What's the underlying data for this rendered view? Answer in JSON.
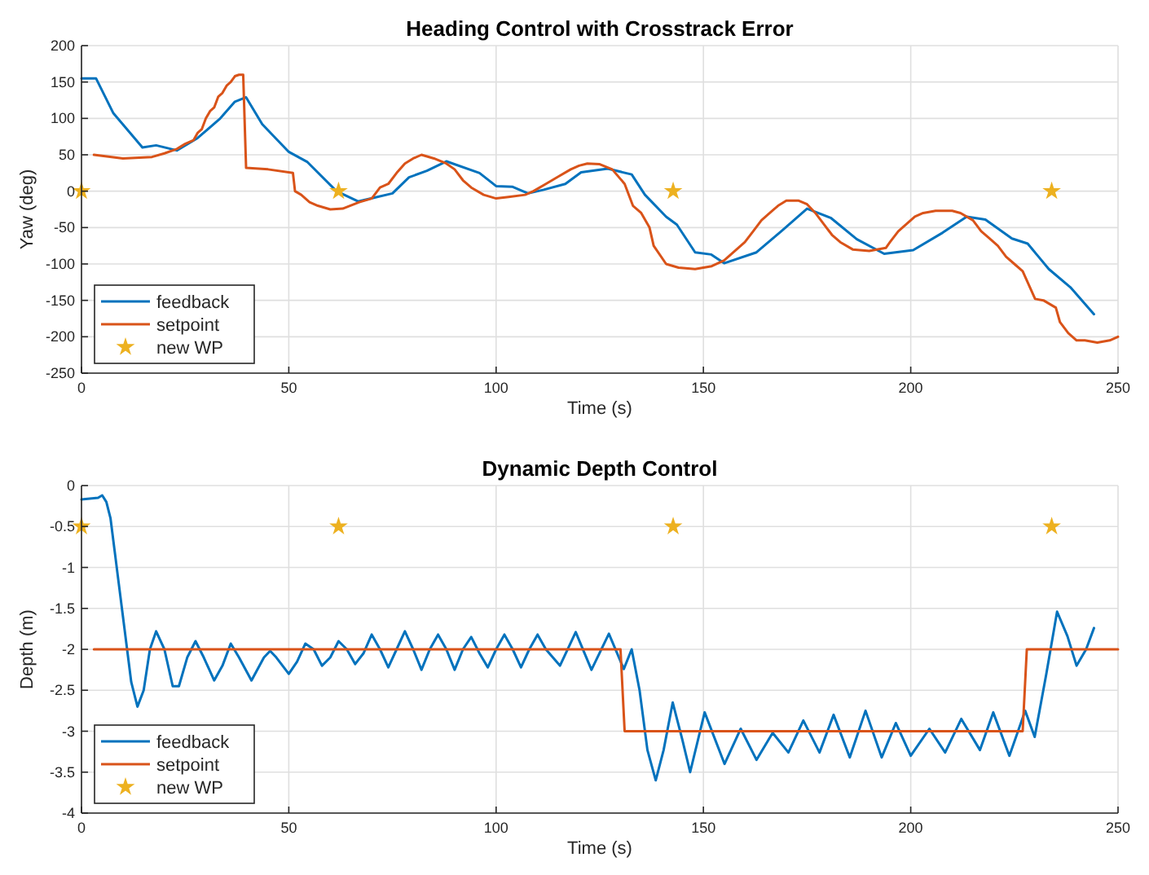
{
  "chart_data": [
    {
      "type": "line",
      "title": "Heading Control with Crosstrack Error",
      "xlabel": "Time (s)",
      "ylabel": "Yaw (deg)",
      "xlim": [
        0,
        250
      ],
      "xticks": [
        0,
        50,
        100,
        150,
        200,
        250
      ],
      "ylim": [
        -250,
        200
      ],
      "yticks": [
        -250,
        -200,
        -150,
        -100,
        -50,
        0,
        50,
        100,
        150,
        200
      ],
      "grid": true,
      "legend": "bottom left",
      "series": [
        {
          "name": "feedback",
          "color": "#0072bd",
          "type": "line",
          "marker": "none",
          "x": [
            0,
            3.5,
            7.7,
            14.7,
            18,
            23,
            28,
            33.3,
            37,
            39.7,
            43.6,
            50,
            54.5,
            61.5,
            66.7,
            70.5,
            75,
            79,
            83.3,
            88,
            96,
            100,
            104,
            107.7,
            111.5,
            116.7,
            120.5,
            126.9,
            132.7,
            135.9,
            141,
            143.6,
            148,
            151.9,
            155,
            162.8,
            169,
            175,
            180.8,
            187,
            193.6,
            200.6,
            207.7,
            213.5,
            218,
            224.4,
            228.2,
            233.3,
            238.5,
            244.2
          ],
          "values": [
            155,
            155,
            107,
            60,
            63,
            56,
            73,
            99,
            123,
            129,
            92,
            54,
            40,
            0,
            -14,
            -9,
            -3,
            19,
            28,
            41,
            25,
            7,
            6,
            -3,
            2,
            10,
            26,
            31,
            23,
            -5,
            -35,
            -46,
            -84,
            -87,
            -99,
            -84,
            -54,
            -24,
            -37,
            -66,
            -86,
            -81,
            -57,
            -35,
            -39,
            -65,
            -72,
            -107,
            -132,
            -169
          ]
        },
        {
          "name": "setpoint",
          "color": "#d95319",
          "type": "line",
          "marker": "none",
          "x": [
            3,
            10,
            17,
            20,
            23,
            25,
            27,
            28,
            29,
            30,
            31,
            32,
            33,
            34,
            35,
            36,
            37,
            38,
            39,
            39.7,
            45,
            51,
            51.5,
            53,
            55,
            57,
            60,
            63,
            67,
            70,
            72,
            74,
            76,
            78,
            80,
            82,
            85,
            88,
            90,
            92,
            94,
            97,
            100,
            103,
            107,
            109,
            112,
            115,
            118,
            120,
            122,
            125,
            128,
            131,
            133,
            135,
            137,
            138,
            141,
            144,
            148,
            152,
            155,
            157,
            160,
            162,
            164,
            166,
            168,
            170,
            173,
            175,
            177,
            179,
            181,
            183,
            186,
            190,
            194,
            195,
            197,
            199,
            201,
            203,
            206,
            210,
            212,
            215,
            217,
            219,
            221,
            223,
            225,
            227,
            230,
            232,
            235,
            236,
            238,
            240,
            242,
            245,
            248,
            250
          ],
          "values": [
            50,
            45,
            47,
            52,
            58,
            65,
            70,
            80,
            85,
            100,
            110,
            115,
            130,
            135,
            145,
            150,
            158,
            160,
            160,
            32,
            30,
            25,
            0,
            -5,
            -15,
            -20,
            -25,
            -24,
            -15,
            -10,
            5,
            10,
            25,
            38,
            45,
            50,
            45,
            38,
            30,
            15,
            5,
            -5,
            -10,
            -8,
            -5,
            0,
            10,
            20,
            30,
            35,
            38,
            37,
            30,
            10,
            -20,
            -30,
            -50,
            -75,
            -100,
            -105,
            -107,
            -103,
            -95,
            -85,
            -70,
            -55,
            -40,
            -30,
            -20,
            -13,
            -13,
            -18,
            -30,
            -45,
            -60,
            -70,
            -80,
            -82,
            -78,
            -70,
            -55,
            -45,
            -35,
            -30,
            -27,
            -27,
            -30,
            -40,
            -55,
            -65,
            -75,
            -90,
            -100,
            -110,
            -148,
            -150,
            -160,
            -180,
            -195,
            -205,
            -205,
            -208,
            -205,
            -200
          ]
        },
        {
          "name": "new WP",
          "color": "#edb120",
          "type": "scatter",
          "marker": "star",
          "x": [
            0,
            62,
            142.7,
            234
          ],
          "values": [
            0,
            0,
            0,
            0
          ]
        }
      ]
    },
    {
      "type": "line",
      "title": "Dynamic Depth Control",
      "xlabel": "Time (s)",
      "ylabel": "Depth (m)",
      "xlim": [
        0,
        250
      ],
      "xticks": [
        0,
        50,
        100,
        150,
        200,
        250
      ],
      "ylim": [
        -4,
        0
      ],
      "yticks": [
        -4,
        -3.5,
        -3,
        -2.5,
        -2,
        -1.5,
        -1,
        -0.5,
        0
      ],
      "grid": true,
      "legend": "bottom left",
      "series": [
        {
          "name": "feedback",
          "color": "#0072bd",
          "type": "line",
          "marker": "none",
          "x": [
            0,
            4,
            5,
            6,
            7,
            8,
            9,
            10,
            11,
            12,
            13.5,
            15,
            16.5,
            18,
            20,
            22,
            23.5,
            25.5,
            27.5,
            29.5,
            32,
            34,
            36,
            38,
            41,
            44,
            45.5,
            47,
            50,
            52,
            54,
            56,
            58,
            60,
            62,
            64,
            66,
            68,
            70,
            72,
            74,
            76,
            78,
            80,
            82,
            84,
            86,
            88,
            90,
            92,
            94,
            96,
            98,
            100,
            102,
            104,
            106,
            108,
            110,
            112,
            115.4,
            119.2,
            123,
            127.2,
            130.8,
            132.7,
            134.6,
            136.5,
            138.5,
            140.4,
            142.6,
            144.9,
            146.8,
            150.3,
            155.1,
            159,
            162.8,
            166.7,
            170.5,
            174.1,
            178,
            181.4,
            185.3,
            189.1,
            193,
            196.4,
            200,
            204.5,
            208.3,
            212.2,
            216.7,
            219.9,
            223.8,
            227.6,
            229.9,
            232.7,
            235.3,
            237.8,
            240,
            242.3,
            244.2
          ],
          "values": [
            -0.17,
            -0.15,
            -0.12,
            -0.2,
            -0.4,
            -0.8,
            -1.2,
            -1.6,
            -2,
            -2.4,
            -2.7,
            -2.5,
            -2,
            -1.78,
            -2,
            -2.45,
            -2.45,
            -2.1,
            -1.9,
            -2.1,
            -2.38,
            -2.2,
            -1.93,
            -2.1,
            -2.38,
            -2.1,
            -2.02,
            -2.1,
            -2.3,
            -2.15,
            -1.93,
            -2,
            -2.2,
            -2.1,
            -1.9,
            -2,
            -2.18,
            -2.05,
            -1.82,
            -2,
            -2.22,
            -2,
            -1.78,
            -2,
            -2.25,
            -2,
            -1.82,
            -2,
            -2.25,
            -2,
            -1.85,
            -2.05,
            -2.22,
            -2,
            -1.82,
            -2,
            -2.22,
            -2,
            -1.82,
            -2,
            -2.2,
            -1.79,
            -2.25,
            -1.81,
            -2.24,
            -2,
            -2.5,
            -3.23,
            -3.6,
            -3.23,
            -2.65,
            -3.1,
            -3.5,
            -2.77,
            -3.4,
            -2.97,
            -3.35,
            -3.02,
            -3.26,
            -2.87,
            -3.26,
            -2.8,
            -3.32,
            -2.75,
            -3.32,
            -2.9,
            -3.3,
            -2.97,
            -3.26,
            -2.85,
            -3.23,
            -2.77,
            -3.3,
            -2.75,
            -3.07,
            -2.3,
            -1.54,
            -1.84,
            -2.2,
            -2,
            -1.74
          ]
        },
        {
          "name": "setpoint",
          "color": "#d95319",
          "type": "line",
          "marker": "none",
          "x": [
            3,
            130,
            131,
            227,
            228,
            250
          ],
          "values": [
            -2,
            -2,
            -3,
            -3,
            -2,
            -2
          ]
        },
        {
          "name": "new WP",
          "color": "#edb120",
          "type": "scatter",
          "marker": "star",
          "x": [
            0,
            62,
            142.7,
            234
          ],
          "values": [
            -0.5,
            -0.5,
            -0.5,
            -0.5
          ]
        }
      ]
    }
  ]
}
